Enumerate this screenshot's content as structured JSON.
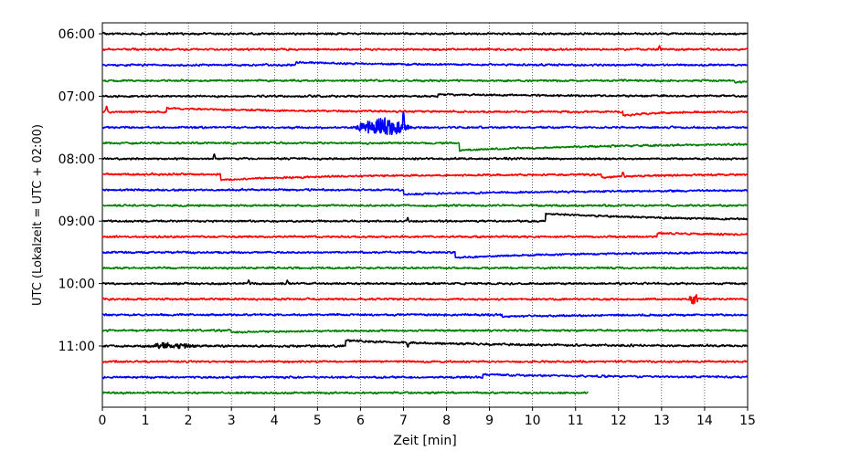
{
  "chart_data": {
    "type": "line",
    "title": "",
    "xlabel": "Zeit  [min]",
    "ylabel": "UTC (Lokalzeit = UTC + 02:00)",
    "xlim": [
      0,
      15
    ],
    "x_ticks": [
      "0",
      "1",
      "2",
      "3",
      "4",
      "5",
      "6",
      "7",
      "8",
      "9",
      "10",
      "11",
      "12",
      "13",
      "14",
      "15"
    ],
    "y_tick_labels": [
      "06:00",
      "07:00",
      "08:00",
      "09:00",
      "10:00",
      "11:00"
    ],
    "y_tick_times": [
      "06:00",
      "07:00",
      "08:00",
      "09:00",
      "10:00",
      "11:00"
    ],
    "grid": "vertical dotted lines at each minute",
    "legend": "none",
    "row_interval_minutes": 15,
    "colors": [
      "#000000",
      "#ff0000",
      "#0000ff",
      "#008000"
    ],
    "series": [
      {
        "start": "06:00",
        "color": "#000000",
        "noise": 1.0,
        "offset_start": -2,
        "end_min": 15,
        "events": []
      },
      {
        "start": "06:15",
        "color": "#ff0000",
        "noise": 1.0,
        "offset_start": 0,
        "end_min": 15,
        "events": [
          {
            "t": 12.95,
            "type": "spike",
            "amp": -5
          }
        ]
      },
      {
        "start": "06:30",
        "color": "#0000ff",
        "noise": 1.0,
        "offset_start": 0,
        "end_min": 15,
        "events": [
          {
            "t": 4.5,
            "type": "step",
            "amp": -3,
            "decay": 2.0
          }
        ]
      },
      {
        "start": "06:45",
        "color": "#008000",
        "noise": 1.0,
        "offset_start": 0,
        "end_min": 15,
        "events": [
          {
            "t": 14.7,
            "type": "step",
            "amp": 2,
            "decay": 0.5
          }
        ]
      },
      {
        "start": "07:00",
        "color": "#000000",
        "noise": 1.0,
        "offset_start": 0,
        "end_min": 15,
        "events": [
          {
            "t": 7.8,
            "type": "step",
            "amp": -2,
            "decay": 3.0
          }
        ]
      },
      {
        "start": "07:15",
        "color": "#ff0000",
        "noise": 1.0,
        "offset_start": 0,
        "end_min": 15,
        "events": [
          {
            "t": 0.1,
            "type": "spike",
            "amp": -7
          },
          {
            "t": 1.5,
            "type": "step",
            "amp": -4,
            "decay": 2.5
          },
          {
            "t": 12.1,
            "type": "step",
            "amp": 4,
            "decay": 0.8
          }
        ]
      },
      {
        "start": "07:30",
        "color": "#0000ff",
        "noise": 1.0,
        "offset_start": 0,
        "end_min": 15,
        "events": [
          {
            "t": 5.8,
            "type": "burst",
            "amp": 10,
            "dur": 1.4
          },
          {
            "t": 7.0,
            "type": "spike",
            "amp": -18
          }
        ]
      },
      {
        "start": "07:45",
        "color": "#008000",
        "noise": 1.0,
        "offset_start": 0,
        "end_min": 15,
        "events": [
          {
            "t": 8.3,
            "type": "step",
            "amp": 8,
            "decay": 4.0
          }
        ]
      },
      {
        "start": "08:00",
        "color": "#000000",
        "noise": 1.0,
        "offset_start": 0,
        "end_min": 15,
        "events": [
          {
            "t": 2.6,
            "type": "spike",
            "amp": -6
          }
        ]
      },
      {
        "start": "08:15",
        "color": "#ff0000",
        "noise": 1.0,
        "offset_start": 0,
        "end_min": 15,
        "events": [
          {
            "t": 2.75,
            "type": "step",
            "amp": 6,
            "decay": 3.0
          },
          {
            "t": 11.6,
            "type": "step",
            "amp": 3,
            "decay": 1.5
          },
          {
            "t": 12.1,
            "type": "spike",
            "amp": -6
          }
        ]
      },
      {
        "start": "08:30",
        "color": "#0000ff",
        "noise": 1.0,
        "offset_start": 0,
        "end_min": 15,
        "events": [
          {
            "t": 7.0,
            "type": "step",
            "amp": 5,
            "decay": 4.0
          }
        ]
      },
      {
        "start": "08:45",
        "color": "#008000",
        "noise": 1.0,
        "offset_start": 0,
        "end_min": 15,
        "events": []
      },
      {
        "start": "09:00",
        "color": "#000000",
        "noise": 1.0,
        "offset_start": 0,
        "end_min": 15,
        "events": [
          {
            "t": 10.3,
            "type": "step",
            "amp": -8,
            "decay": 3.5
          },
          {
            "t": 7.1,
            "type": "spike",
            "amp": -5
          }
        ]
      },
      {
        "start": "09:15",
        "color": "#ff0000",
        "noise": 1.0,
        "offset_start": 0,
        "end_min": 15,
        "events": [
          {
            "t": 12.9,
            "type": "step",
            "amp": -4,
            "decay": 3.5
          }
        ]
      },
      {
        "start": "09:30",
        "color": "#0000ff",
        "noise": 1.0,
        "offset_start": 0,
        "end_min": 15,
        "events": [
          {
            "t": 8.2,
            "type": "step",
            "amp": 6,
            "decay": 2.5
          }
        ]
      },
      {
        "start": "09:45",
        "color": "#008000",
        "noise": 1.0,
        "offset_start": 0,
        "end_min": 15,
        "events": []
      },
      {
        "start": "10:00",
        "color": "#000000",
        "noise": 1.0,
        "offset_start": 0,
        "end_min": 15,
        "events": [
          {
            "t": 3.4,
            "type": "spike",
            "amp": -4
          },
          {
            "t": 4.3,
            "type": "spike",
            "amp": -4
          }
        ]
      },
      {
        "start": "10:15",
        "color": "#ff0000",
        "noise": 1.0,
        "offset_start": 0,
        "end_min": 15,
        "events": [
          {
            "t": 13.6,
            "type": "burst",
            "amp": 6,
            "dur": 0.3
          }
        ]
      },
      {
        "start": "10:30",
        "color": "#0000ff",
        "noise": 1.0,
        "offset_start": 0,
        "end_min": 15,
        "events": [
          {
            "t": 9.3,
            "type": "step",
            "amp": 2,
            "decay": 2.0
          }
        ]
      },
      {
        "start": "10:45",
        "color": "#008000",
        "noise": 1.0,
        "offset_start": 0,
        "end_min": 15,
        "events": [
          {
            "t": 3.0,
            "type": "step",
            "amp": 2,
            "decay": 2.0
          }
        ]
      },
      {
        "start": "11:00",
        "color": "#000000",
        "noise": 1.1,
        "offset_start": 0,
        "end_min": 15,
        "events": [
          {
            "t": 1.0,
            "type": "burst",
            "amp": 3,
            "dur": 1.2
          },
          {
            "t": 5.65,
            "type": "step",
            "amp": -6,
            "decay": 3.0
          },
          {
            "t": 7.1,
            "type": "spike",
            "amp": 5
          }
        ]
      },
      {
        "start": "11:15",
        "color": "#ff0000",
        "noise": 1.0,
        "offset_start": 0,
        "end_min": 15,
        "events": []
      },
      {
        "start": "11:30",
        "color": "#0000ff",
        "noise": 1.0,
        "offset_start": 0,
        "end_min": 15,
        "events": [
          {
            "t": 8.85,
            "type": "step",
            "amp": -3,
            "decay": 2.5
          }
        ]
      },
      {
        "start": "11:45",
        "color": "#008000",
        "noise": 1.0,
        "offset_start": 0,
        "end_min": 11.3,
        "events": []
      }
    ]
  }
}
